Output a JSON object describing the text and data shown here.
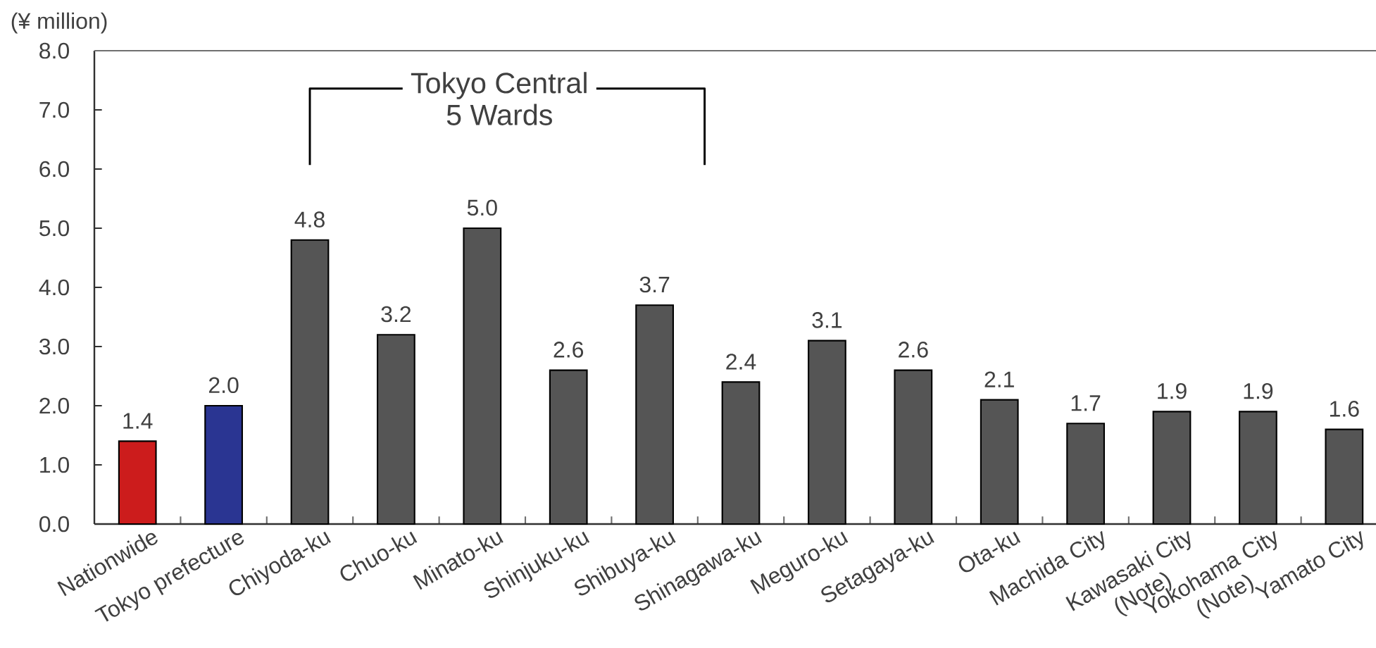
{
  "chart_data": {
    "type": "bar",
    "ylabel": "(¥ million)",
    "categories": [
      "Nationwide",
      "Tokyo prefecture",
      "Chiyoda-ku",
      "Chuo-ku",
      "Minato-ku",
      "Shinjuku-ku",
      "Shibuya-ku",
      "Shinagawa-ku",
      "Meguro-ku",
      "Setagaya-ku",
      "Ota-ku",
      "Machida City",
      "Kawasaki City (Note)",
      "Yokohama City (Note)",
      "Yamato City"
    ],
    "values": [
      1.4,
      2.0,
      4.8,
      3.2,
      5.0,
      2.6,
      3.7,
      2.4,
      3.1,
      2.6,
      2.1,
      1.7,
      1.9,
      1.9,
      1.6
    ],
    "value_labels": [
      "1.4",
      "2.0",
      "4.8",
      "3.2",
      "5.0",
      "2.6",
      "3.7",
      "2.4",
      "3.1",
      "2.6",
      "2.1",
      "1.7",
      "1.9",
      "1.9",
      "1.6"
    ],
    "colors": [
      "#cc1c1c",
      "#2a3592",
      "#555555",
      "#555555",
      "#555555",
      "#555555",
      "#555555",
      "#555555",
      "#555555",
      "#555555",
      "#555555",
      "#555555",
      "#555555",
      "#555555",
      "#555555"
    ],
    "ylim": [
      0,
      8
    ],
    "yticks": [
      {
        "value": 0,
        "label": "0.0"
      },
      {
        "value": 1,
        "label": "1.0"
      },
      {
        "value": 2,
        "label": "2.0"
      },
      {
        "value": 3,
        "label": "3.0"
      },
      {
        "value": 4,
        "label": "4.0"
      },
      {
        "value": 5,
        "label": "5.0"
      },
      {
        "value": 6,
        "label": "6.0"
      },
      {
        "value": 7,
        "label": "7.0"
      },
      {
        "value": 8,
        "label": "8.0"
      }
    ],
    "annotations": [
      "Tokyo Central 5 Wards"
    ]
  }
}
